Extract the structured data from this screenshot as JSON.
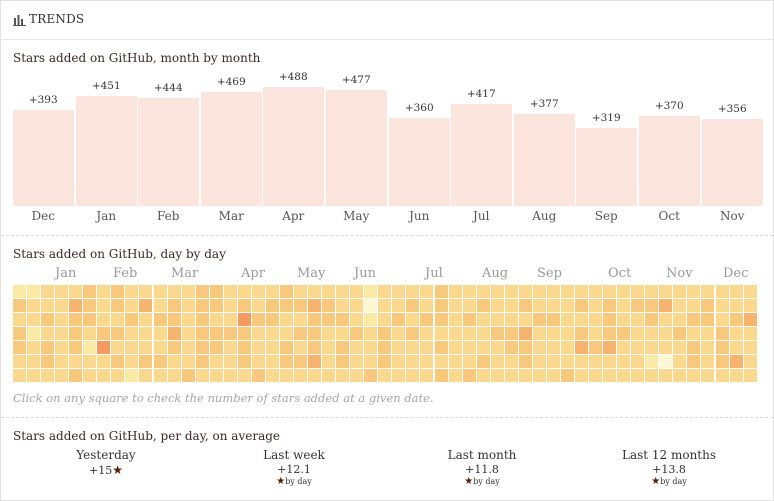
{
  "header": {
    "title": "TRENDS",
    "icon": "bar-chart-icon"
  },
  "monthly": {
    "title": "Stars added on GitHub, month by month"
  },
  "daily": {
    "title": "Stars added on GitHub, day by day",
    "months": [
      "Jan",
      "Feb",
      "Mar",
      "Apr",
      "May",
      "Jun",
      "Jul",
      "Aug",
      "Sep",
      "Oct",
      "Nov",
      "Dec"
    ],
    "hint": "Click on any square to check the number of stars added at a given date.",
    "palette": [
      "#fdf7d4",
      "#fbe9a6",
      "#fad98f",
      "#f8c87c",
      "#f6b36d",
      "#f29a5f",
      "#ee7b4e"
    ],
    "levels": [
      [
        1,
        1,
        2,
        2,
        2,
        3,
        2,
        3,
        2,
        2,
        2,
        2,
        2,
        3,
        3,
        2,
        2,
        2,
        2,
        3,
        2,
        2,
        2,
        2,
        2,
        1,
        2,
        2,
        2,
        2,
        3,
        2,
        2,
        2,
        2,
        2,
        2,
        2,
        2,
        2,
        2,
        2,
        2,
        2,
        2,
        2,
        2,
        2,
        2,
        2,
        2,
        2,
        2
      ],
      [
        3,
        2,
        2,
        2,
        4,
        3,
        2,
        3,
        2,
        4,
        2,
        3,
        2,
        3,
        3,
        2,
        3,
        2,
        3,
        3,
        3,
        4,
        3,
        2,
        2,
        0,
        2,
        2,
        3,
        2,
        3,
        2,
        2,
        3,
        2,
        2,
        3,
        2,
        2,
        2,
        3,
        2,
        3,
        2,
        3,
        3,
        4,
        2,
        2,
        3,
        2,
        2,
        2
      ],
      [
        2,
        2,
        3,
        2,
        3,
        3,
        2,
        2,
        3,
        2,
        3,
        3,
        2,
        3,
        2,
        2,
        5,
        3,
        3,
        2,
        2,
        3,
        3,
        3,
        2,
        1,
        2,
        3,
        2,
        3,
        3,
        2,
        3,
        2,
        2,
        2,
        2,
        3,
        3,
        2,
        2,
        2,
        3,
        2,
        2,
        3,
        2,
        2,
        3,
        3,
        2,
        3,
        4
      ],
      [
        3,
        1,
        2,
        2,
        3,
        2,
        3,
        3,
        2,
        2,
        2,
        4,
        2,
        3,
        3,
        3,
        3,
        2,
        2,
        2,
        3,
        3,
        2,
        2,
        3,
        2,
        3,
        2,
        3,
        2,
        2,
        2,
        2,
        2,
        3,
        3,
        4,
        2,
        2,
        2,
        3,
        2,
        3,
        3,
        2,
        2,
        2,
        3,
        2,
        2,
        3,
        2,
        2
      ],
      [
        3,
        2,
        3,
        2,
        3,
        1,
        5,
        2,
        2,
        2,
        2,
        3,
        2,
        3,
        3,
        2,
        3,
        2,
        2,
        3,
        2,
        3,
        2,
        3,
        2,
        2,
        3,
        2,
        2,
        2,
        3,
        2,
        2,
        2,
        2,
        3,
        3,
        2,
        2,
        2,
        4,
        3,
        4,
        2,
        2,
        2,
        2,
        2,
        3,
        2,
        3,
        2,
        2
      ],
      [
        2,
        2,
        3,
        2,
        2,
        2,
        2,
        3,
        2,
        3,
        3,
        2,
        2,
        3,
        2,
        2,
        3,
        2,
        2,
        3,
        3,
        4,
        2,
        3,
        2,
        2,
        3,
        2,
        2,
        2,
        2,
        2,
        2,
        3,
        2,
        2,
        3,
        2,
        2,
        2,
        2,
        2,
        2,
        2,
        2,
        1,
        0,
        2,
        3,
        2,
        3,
        4,
        2
      ],
      [
        2,
        2,
        2,
        2,
        3,
        2,
        2,
        2,
        1,
        2,
        2,
        2,
        3,
        2,
        2,
        2,
        2,
        3,
        2,
        2,
        2,
        2,
        2,
        2,
        2,
        3,
        2,
        2,
        2,
        2,
        3,
        2,
        3,
        2,
        2,
        2,
        2,
        2,
        2,
        3,
        2,
        2,
        2,
        2,
        2,
        2,
        2,
        2,
        2,
        2,
        2,
        2,
        2
      ]
    ]
  },
  "average": {
    "title": "Stars added on GitHub, per day, on average",
    "items": [
      {
        "label": "Yesterday",
        "value": "+15",
        "sub": ""
      },
      {
        "label": "Last week",
        "value": "+12.1",
        "sub": "by day"
      },
      {
        "label": "Last month",
        "value": "+11.8",
        "sub": "by day"
      },
      {
        "label": "Last 12 months",
        "value": "+13.8",
        "sub": "by day"
      }
    ]
  },
  "chart_data": {
    "type": "bar",
    "title": "Stars added on GitHub, month by month",
    "categories": [
      "Dec",
      "Jan",
      "Feb",
      "Mar",
      "Apr",
      "May",
      "Jun",
      "Jul",
      "Aug",
      "Sep",
      "Oct",
      "Nov"
    ],
    "values": [
      393,
      451,
      444,
      469,
      488,
      477,
      360,
      417,
      377,
      319,
      370,
      356
    ],
    "labels": [
      "+393",
      "+451",
      "+444",
      "+469",
      "+488",
      "+477",
      "+360",
      "+417",
      "+377",
      "+319",
      "+370",
      "+356"
    ],
    "xlabel": "",
    "ylabel": "",
    "ylim": [
      0,
      488
    ],
    "color": "#fbe5dc"
  }
}
